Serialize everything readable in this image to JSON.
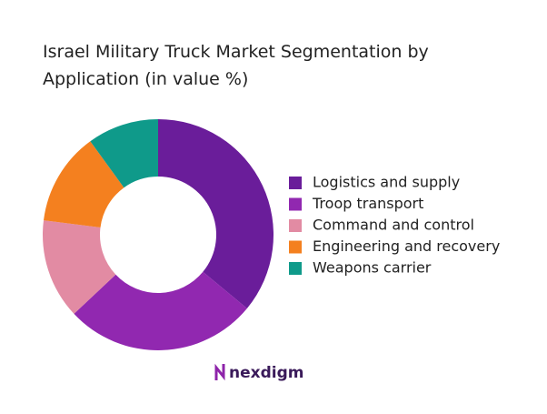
{
  "chart_data": {
    "type": "donut",
    "title": "Israel Military Truck Market Segmentation by Application (in value %)",
    "categories": [
      "Logistics and supply",
      "Troop transport",
      "Command and control",
      "Engineering and recovery",
      "Weapons carrier"
    ],
    "values": [
      36,
      27,
      14,
      13,
      10
    ],
    "colors": [
      "#6a1d9a",
      "#9128b0",
      "#e28ba3",
      "#f4801f",
      "#0f9a8a"
    ],
    "legend": "right"
  },
  "logo": "nexdigm"
}
